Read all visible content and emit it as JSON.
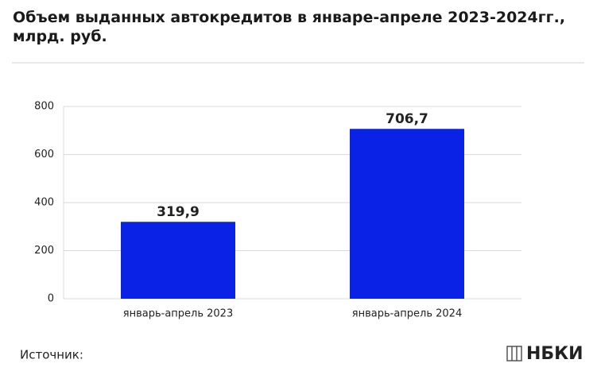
{
  "chart_data": {
    "type": "bar",
    "title": "Объем выданных автокредитов в январе-апреле 2023-2024гг.,\nмлрд. руб.",
    "categories": [
      "январь-апрель 2023",
      "январь-апрель 2024"
    ],
    "values": [
      319.9,
      706.7
    ],
    "value_labels": [
      "319,9",
      "706,7"
    ],
    "color": "#0a22e6",
    "ylim": [
      0,
      800
    ],
    "yticks": [
      0,
      200,
      400,
      600,
      800
    ],
    "grid": true
  },
  "footer": {
    "source": "Источник:",
    "logo": "НБКИ"
  }
}
